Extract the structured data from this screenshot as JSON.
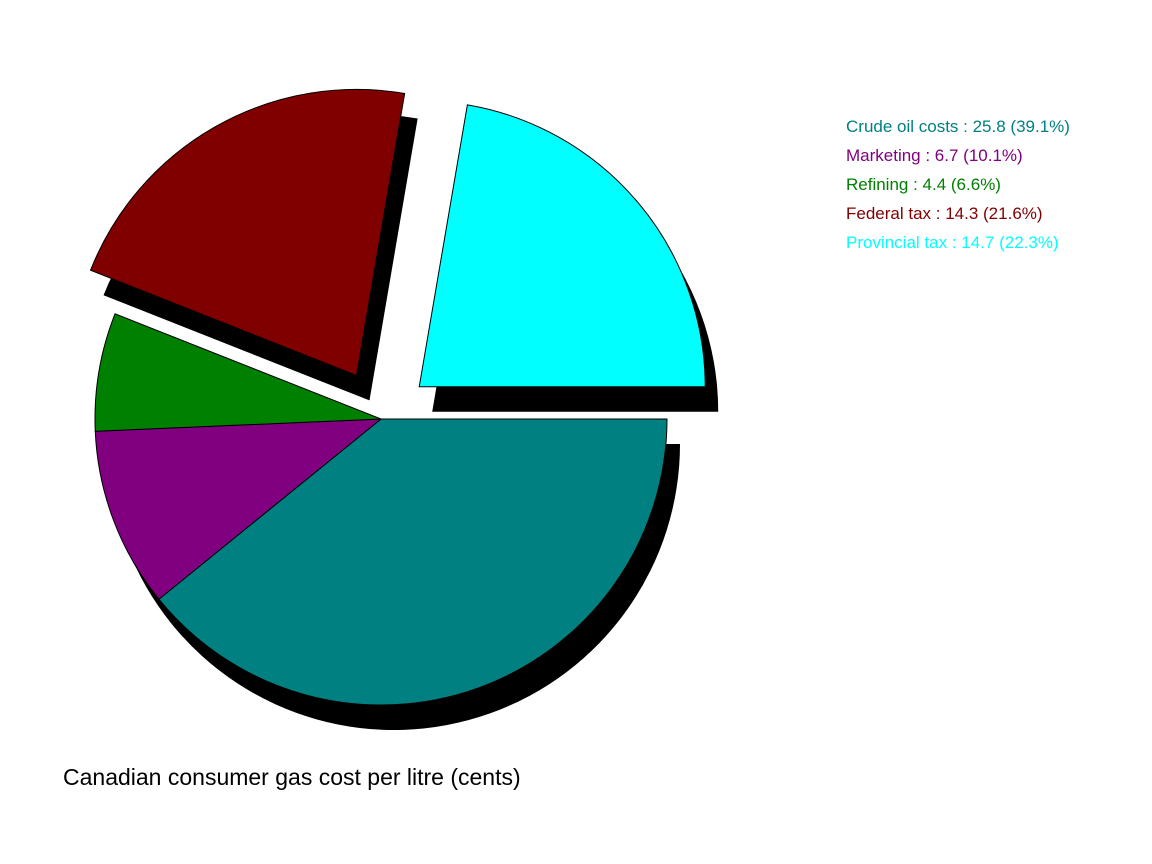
{
  "chart_data": {
    "type": "pie",
    "title": "Canadian consumer gas cost per litre (cents)",
    "exploded_slices": [
      "Federal tax",
      "Provincial tax"
    ],
    "shadow": true,
    "legend_position": "top-right",
    "slices": [
      {
        "label": "Crude oil costs",
        "value": 25.8,
        "percent": 39.1,
        "color": "#008080",
        "legend_text": "Crude oil costs : 25.8 (39.1%)"
      },
      {
        "label": "Marketing",
        "value": 6.7,
        "percent": 10.1,
        "color": "#800080",
        "legend_text": "Marketing : 6.7 (10.1%)"
      },
      {
        "label": "Refining",
        "value": 4.4,
        "percent": 6.6,
        "color": "#008000",
        "legend_text": "Refining : 4.4 (6.6%)"
      },
      {
        "label": "Federal tax",
        "value": 14.3,
        "percent": 21.6,
        "color": "#800000",
        "legend_text": "Federal tax : 14.3 (21.6%)"
      },
      {
        "label": "Provincial tax",
        "value": 14.7,
        "percent": 22.3,
        "color": "#00FFFF",
        "legend_text": "Provincial tax : 14.7 (22.3%)"
      }
    ]
  }
}
